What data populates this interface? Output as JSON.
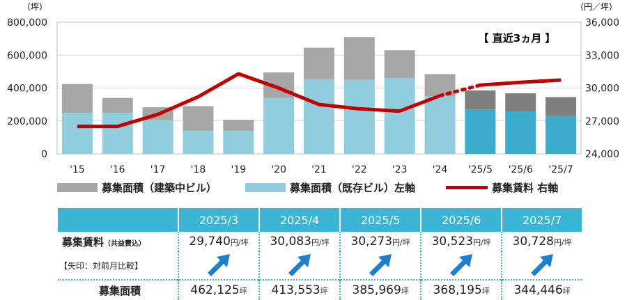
{
  "chart_data": {
    "type": "bar+line",
    "categories": [
      "'15",
      "'16",
      "'17",
      "'18",
      "'19",
      "'20",
      "'21",
      "'22",
      "'23",
      "'24",
      "'25/5",
      "'25/6",
      "'25/7"
    ],
    "series": [
      {
        "name": "募集面積（既存ビル）左軸",
        "type": "bar",
        "values": [
          250000,
          250000,
          205000,
          140000,
          140000,
          340000,
          455000,
          450000,
          460000,
          350000,
          268000,
          258000,
          230000
        ]
      },
      {
        "name": "募集面積（建築中ビル）",
        "type": "bar",
        "values": [
          175000,
          90000,
          78000,
          150000,
          67000,
          155000,
          190000,
          260000,
          170000,
          135000,
          118000,
          110000,
          115000
        ]
      },
      {
        "name": "募集賃料 右軸",
        "type": "line",
        "axis": "right",
        "values": [
          26500,
          26500,
          27600,
          29200,
          31300,
          30000,
          28500,
          28100,
          27900,
          29300,
          30273,
          30523,
          30728
        ]
      }
    ],
    "y_left": {
      "unit": "（坪）",
      "ylim": [
        0,
        800000
      ],
      "ticks": [
        "0",
        "200,000",
        "400,000",
        "600,000",
        "800,000"
      ]
    },
    "y_right": {
      "unit": "（円／坪）",
      "ylim": [
        24000,
        36000
      ],
      "ticks": [
        "24,000",
        "27,000",
        "30,000",
        "33,000",
        "36,000"
      ]
    },
    "annotation": "【 直近3ヵ月 】",
    "colors": {
      "existing": "#92cddd",
      "existing_recent": "#3dabcc",
      "construction": "#a6a6a6",
      "construction_recent": "#7f7f7f",
      "rent_line": "#c00000",
      "grid": "#d9d9d9"
    }
  },
  "legend": [
    {
      "label": "募集面積（建築中ビル）",
      "color": "#a6a6a6"
    },
    {
      "label": "募集面積（既存ビル）左軸",
      "color": "#92cddd"
    },
    {
      "label": "募集賃料 右軸",
      "color": "#c00000"
    }
  ],
  "table": {
    "periods": [
      "2025/3",
      "2025/4",
      "2025/5",
      "2025/6",
      "2025/7"
    ],
    "rent_label": "募集賃料",
    "rent_sub": "（共益費込）",
    "arrow_label": "【矢印：対前月比較】",
    "area_label": "募集面積",
    "rent_values": [
      "29,740",
      "30,083",
      "30,273",
      "30,523",
      "30,728"
    ],
    "rent_unit": "円/坪",
    "area_values": [
      "462,125",
      "413,553",
      "385,969",
      "368,195",
      "344,446"
    ],
    "area_unit": "坪",
    "arrow_icon": "arrow-up-right-icon",
    "arrow_color": "#1f7fcf"
  }
}
